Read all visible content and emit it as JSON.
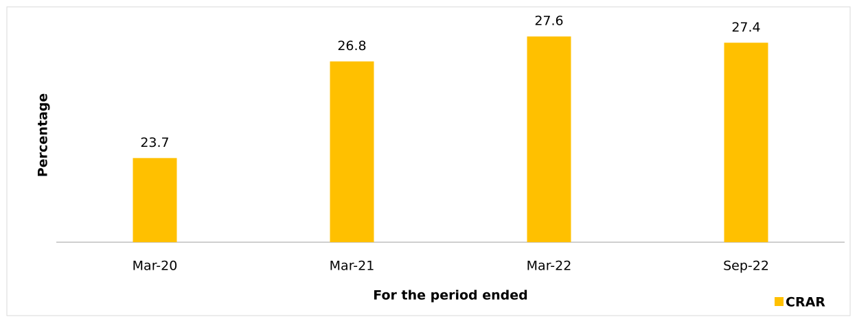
{
  "chart_data": {
    "type": "bar",
    "x_label": "For the period ended",
    "y_label": "Percentage",
    "categories": [
      "Mar-20",
      "Mar-21",
      "Mar-22",
      "Sep-22"
    ],
    "series": [
      {
        "name": "CRAR",
        "color": "#ffc000",
        "values": [
          23.7,
          26.8,
          27.6,
          27.4
        ]
      }
    ],
    "ylim": [
      21,
      28
    ],
    "legend": "bottom-right",
    "grid": false
  }
}
